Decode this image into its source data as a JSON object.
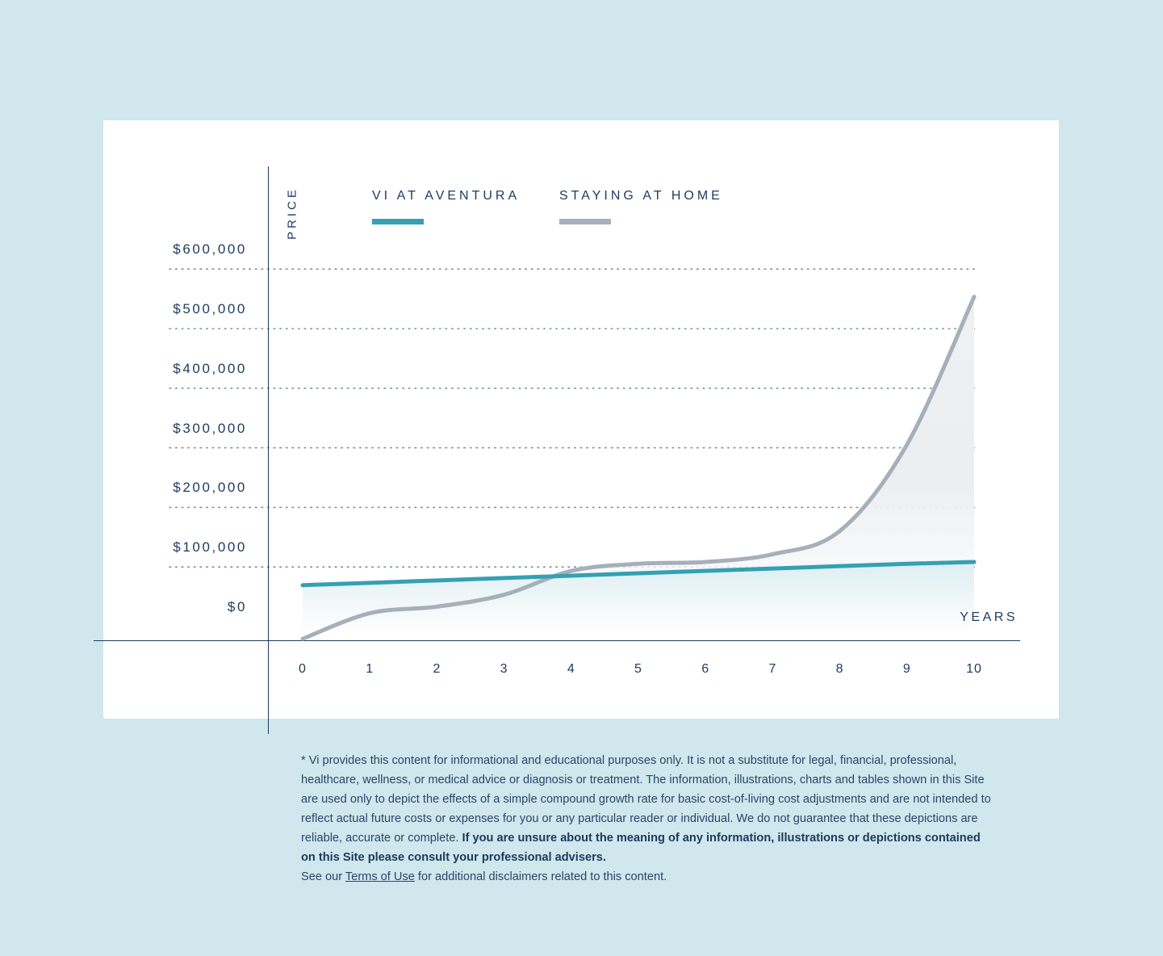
{
  "colors": {
    "background": "#cfe7ed",
    "card": "#ffffff",
    "text": "#1d3a5c",
    "vi_series": "#35a0b3",
    "home_series": "#a6afba"
  },
  "chart_data": {
    "type": "line",
    "ylabel": "PRICE",
    "xlabel": "YEARS",
    "x": [
      0,
      1,
      2,
      3,
      4,
      5,
      6,
      7,
      8,
      9,
      10
    ],
    "xticks": [
      "0",
      "1",
      "2",
      "3",
      "4",
      "5",
      "6",
      "7",
      "8",
      "9",
      "10"
    ],
    "yticks": [
      {
        "value": 0,
        "label": "$0"
      },
      {
        "value": 100000,
        "label": "$100,000"
      },
      {
        "value": 200000,
        "label": "$200,000"
      },
      {
        "value": 300000,
        "label": "$300,000"
      },
      {
        "value": 400000,
        "label": "$400,000"
      },
      {
        "value": 500000,
        "label": "$500,000"
      },
      {
        "value": 600000,
        "label": "$600,000"
      }
    ],
    "ylim": [
      0,
      600000
    ],
    "grid": "dotted horizontal",
    "legend_position": "top",
    "series": [
      {
        "name": "VI AT AVENTURA",
        "color": "#35a0b3",
        "values": [
          64000,
          68000,
          72000,
          76000,
          80000,
          84000,
          88000,
          92000,
          96000,
          100000,
          103000
        ]
      },
      {
        "name": "STAYING AT HOME",
        "color": "#a6afba",
        "values": [
          -26000,
          17000,
          28000,
          48000,
          88000,
          100000,
          103000,
          116000,
          155000,
          300000,
          548000
        ]
      }
    ]
  },
  "disclaimer": {
    "text": "* Vi provides this content for informational and educational purposes only. It is not a substitute for legal, financial, professional, healthcare, wellness, or medical advice or diagnosis or treatment. The information, illustrations, charts and tables shown in this Site are used only to depict the effects of a simple compound growth rate for basic cost-of-living cost adjustments and are not intended to reflect actual future costs or expenses for you or any particular reader or individual. We do not guarantee that these depictions are reliable, accurate or complete. ",
    "bold": "If you are unsure about the meaning of any information, illustrations or depictions contained on this Site please consult your professional advisers.",
    "see_prefix": "See our ",
    "link": "Terms of Use",
    "see_suffix": " for additional disclaimers related to this content."
  }
}
